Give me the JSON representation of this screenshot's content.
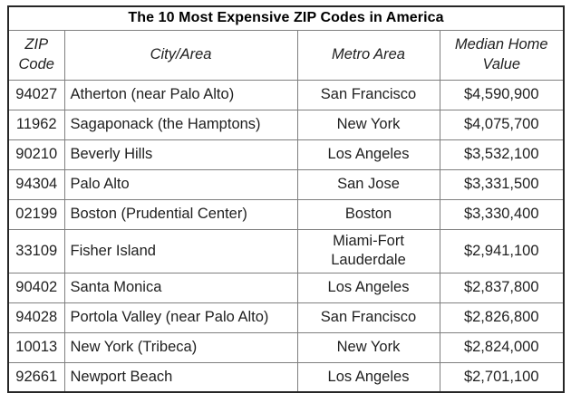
{
  "chart_data": {
    "type": "table",
    "title": "The 10 Most Expensive ZIP Codes in America",
    "columns": [
      "ZIP Code",
      "City/Area",
      "Metro Area",
      "Median Home Value"
    ],
    "rows": [
      {
        "zip": "94027",
        "city": "Atherton (near Palo Alto)",
        "metro": "San Francisco",
        "value": "$4,590,900"
      },
      {
        "zip": "11962",
        "city": "Sagaponack (the Hamptons)",
        "metro": "New York",
        "value": "$4,075,700"
      },
      {
        "zip": "90210",
        "city": "Beverly Hills",
        "metro": "Los Angeles",
        "value": "$3,532,100"
      },
      {
        "zip": "94304",
        "city": "Palo Alto",
        "metro": "San Jose",
        "value": "$3,331,500"
      },
      {
        "zip": "02199",
        "city": "Boston (Prudential Center)",
        "metro": "Boston",
        "value": "$3,330,400"
      },
      {
        "zip": "33109",
        "city": "Fisher Island",
        "metro": "Miami-Fort Lauderdale",
        "value": "$2,941,100"
      },
      {
        "zip": "90402",
        "city": "Santa Monica",
        "metro": "Los Angeles",
        "value": "$2,837,800"
      },
      {
        "zip": "94028",
        "city": "Portola Valley (near Palo Alto)",
        "metro": "San Francisco",
        "value": "$2,826,800"
      },
      {
        "zip": "10013",
        "city": "New York (Tribeca)",
        "metro": "New York",
        "value": "$2,824,000"
      },
      {
        "zip": "92661",
        "city": "Newport Beach",
        "metro": "Los Angeles",
        "value": "$2,701,100"
      }
    ]
  },
  "colors": {
    "text": "#1f1f1f",
    "title_text": "#000000",
    "inner_border": "#7f7f7f",
    "outer_border": "#262626",
    "background": "#ffffff"
  }
}
